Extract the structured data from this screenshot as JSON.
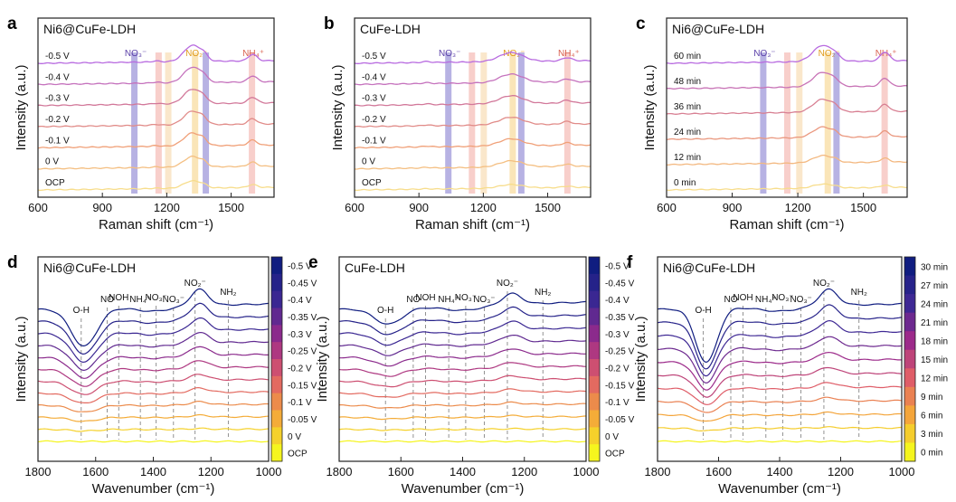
{
  "chart_data": [
    {
      "id": "a",
      "type": "line",
      "panel_letter": "a",
      "title": "Ni6@CuFe-LDH",
      "xlabel": "Raman shift (cm⁻¹)",
      "ylabel": "Intensity (a.u.)",
      "xlim": [
        600,
        1700
      ],
      "x_ticks": [
        "600",
        "900",
        "1200",
        "1500"
      ],
      "x_tick_values": [
        600,
        900,
        1200,
        1500
      ],
      "series_labels": [
        "OCP",
        "0 V",
        "-0.1 V",
        "-0.2 V",
        "-0.3 V",
        "-0.4 V",
        "-0.5 V"
      ],
      "bands": [
        {
          "label": "NO₃⁻",
          "x": 1047,
          "color": "#7b72cc",
          "label_color": "#5a3fa8"
        },
        {
          "label": "",
          "x": 1160,
          "color": "#f2a8a0"
        },
        {
          "label": "",
          "x": 1205,
          "color": "#f6d3a0"
        },
        {
          "label": "NO₂⁻",
          "x": 1330,
          "color": "#f6cf7e",
          "label_color": "#e09b1c"
        },
        {
          "label": "",
          "x": 1380,
          "color": "#7b72cc"
        },
        {
          "label": "NH₄⁺",
          "x": 1595,
          "color": "#f2a8a0",
          "label_color": "#d9604e"
        }
      ],
      "peaks": [
        {
          "x": 1320,
          "w": 40,
          "h": 1.0
        },
        {
          "x": 1600,
          "w": 20,
          "h": 0.4
        },
        {
          "x": 1372,
          "w": 16,
          "h": 0.25
        },
        {
          "x": 1150,
          "w": 18,
          "h": 0.06
        }
      ],
      "peak_scale": [
        0.45,
        0.65,
        0.8,
        0.85,
        0.9,
        0.95,
        1.0
      ]
    },
    {
      "id": "b",
      "type": "line",
      "panel_letter": "b",
      "title": "CuFe-LDH",
      "xlabel": "Raman shift (cm⁻¹)",
      "ylabel": "Intensity (a.u.)",
      "xlim": [
        600,
        1700
      ],
      "x_ticks": [
        "600",
        "900",
        "1200",
        "1500"
      ],
      "x_tick_values": [
        600,
        900,
        1200,
        1500
      ],
      "series_labels": [
        "OCP",
        "0 V",
        "-0.1 V",
        "-0.2 V",
        "-0.3 V",
        "-0.4 V",
        "-0.5 V"
      ],
      "bands": [
        {
          "label": "NO₃⁻",
          "x": 1035,
          "color": "#7b72cc",
          "label_color": "#5a3fa8"
        },
        {
          "label": "",
          "x": 1145,
          "color": "#f2a8a0"
        },
        {
          "label": "",
          "x": 1200,
          "color": "#f6d3a0"
        },
        {
          "label": "NO₂⁻",
          "x": 1335,
          "color": "#f6cf7e",
          "label_color": "#e09b1c"
        },
        {
          "label": "",
          "x": 1375,
          "color": "#7b72cc"
        },
        {
          "label": "NH₄⁺",
          "x": 1590,
          "color": "#f2a8a0",
          "label_color": "#d9604e"
        }
      ],
      "peaks": [
        {
          "x": 1330,
          "w": 55,
          "h": 0.55
        },
        {
          "x": 1590,
          "w": 22,
          "h": 0.2
        },
        {
          "x": 935,
          "w": 18,
          "h": 0.06
        }
      ],
      "peak_scale": [
        0.4,
        0.7,
        0.8,
        0.85,
        0.9,
        0.95,
        1.0
      ]
    },
    {
      "id": "c",
      "type": "line",
      "panel_letter": "c",
      "title": "Ni6@CuFe-LDH",
      "xlabel": "Raman shift (cm⁻¹)",
      "ylabel": "Intensity (a.u.)",
      "xlim": [
        600,
        1700
      ],
      "x_ticks": [
        "600",
        "900",
        "1200",
        "1500"
      ],
      "x_tick_values": [
        600,
        900,
        1200,
        1500
      ],
      "series_labels": [
        "0 min",
        "12 min",
        "24 min",
        "36 min",
        "48 min",
        "60 min"
      ],
      "bands": [
        {
          "label": "NO₃⁻",
          "x": 1040,
          "color": "#7b72cc",
          "label_color": "#5a3fa8"
        },
        {
          "label": "",
          "x": 1150,
          "color": "#f2a8a0"
        },
        {
          "label": "",
          "x": 1205,
          "color": "#f6d3a0"
        },
        {
          "label": "NO₂⁻",
          "x": 1335,
          "color": "#f6cf7e",
          "label_color": "#e09b1c"
        },
        {
          "label": "",
          "x": 1375,
          "color": "#7b72cc"
        },
        {
          "label": "NH₄⁺",
          "x": 1595,
          "color": "#f2a8a0",
          "label_color": "#d9604e"
        }
      ],
      "peaks": [
        {
          "x": 1315,
          "w": 45,
          "h": 1.0
        },
        {
          "x": 1598,
          "w": 20,
          "h": 0.55
        },
        {
          "x": 1372,
          "w": 16,
          "h": 0.2
        }
      ],
      "peak_scale": [
        0.25,
        0.45,
        0.65,
        0.8,
        0.9,
        1.0
      ]
    },
    {
      "id": "d",
      "type": "line",
      "panel_letter": "d",
      "title": "Ni6@CuFe-LDH",
      "xlabel": "Wavenumber (cm⁻¹)",
      "ylabel": "Intensity (a.u.)",
      "xlim": [
        1800,
        1000
      ],
      "x_ticks": [
        "1800",
        "1600",
        "1400",
        "1200",
        "1000"
      ],
      "x_tick_values": [
        1800,
        1600,
        1400,
        1200,
        1000
      ],
      "colorbar_labels": [
        "-0.5 V",
        "-0.45 V",
        "-0.4 V",
        "-0.35 V",
        "-0.3 V",
        "-0.25 V",
        "-0.2 V",
        "-0.15 V",
        "-0.1 V",
        "-0.05 V",
        "0 V",
        "OCP"
      ],
      "annotations": [
        {
          "label": "O-H",
          "x": 1650
        },
        {
          "label": "NO",
          "x": 1560
        },
        {
          "label": "NOH",
          "x": 1520
        },
        {
          "label": "NH₄⁺",
          "x": 1445
        },
        {
          "label": "NO₃⁻",
          "x": 1390
        },
        {
          "label": "NO₃⁻",
          "x": 1330
        },
        {
          "label": "NO₂⁻",
          "x": 1255
        },
        {
          "label": "NH₂",
          "x": 1140
        }
      ]
    },
    {
      "id": "e",
      "type": "line",
      "panel_letter": "e",
      "title": "CuFe-LDH",
      "xlabel": "Wavenumber (cm⁻¹)",
      "ylabel": "Intensity (a.u.)",
      "xlim": [
        1800,
        1000
      ],
      "x_ticks": [
        "1800",
        "1600",
        "1400",
        "1200",
        "1000"
      ],
      "x_tick_values": [
        1800,
        1600,
        1400,
        1200,
        1000
      ],
      "colorbar_labels": [
        "-0.5 V",
        "-0.45 V",
        "-0.4 V",
        "-0.35 V",
        "-0.3 V",
        "-0.25 V",
        "-0.2 V",
        "-0.15 V",
        "-0.1 V",
        "-0.05 V",
        "0 V",
        "OCP"
      ],
      "annotations": [
        {
          "label": "O-H",
          "x": 1650
        },
        {
          "label": "NO",
          "x": 1560
        },
        {
          "label": "NOH",
          "x": 1520
        },
        {
          "label": "NH₄⁺",
          "x": 1445
        },
        {
          "label": "NO₃⁻",
          "x": 1390
        },
        {
          "label": "NO₃⁻",
          "x": 1330
        },
        {
          "label": "NO₂⁻",
          "x": 1255
        },
        {
          "label": "NH₂",
          "x": 1140
        }
      ]
    },
    {
      "id": "f",
      "type": "line",
      "panel_letter": "f",
      "title": "Ni6@CuFe-LDH",
      "xlabel": "Wavenumber (cm⁻¹)",
      "ylabel": "Intensity (a.u.)",
      "xlim": [
        1800,
        1000
      ],
      "x_ticks": [
        "1800",
        "1600",
        "1400",
        "1200",
        "1000"
      ],
      "x_tick_values": [
        1800,
        1600,
        1400,
        1200,
        1000
      ],
      "colorbar_labels": [
        "30 min",
        "27 min",
        "24 min",
        "21 min",
        "18 min",
        "15 min",
        "12 min",
        "9 min",
        "6 min",
        "3 min",
        "0 min"
      ],
      "annotations": [
        {
          "label": "O-H",
          "x": 1650
        },
        {
          "label": "NO",
          "x": 1560
        },
        {
          "label": "NOH",
          "x": 1520
        },
        {
          "label": "NH₄⁺",
          "x": 1445
        },
        {
          "label": "NO₃⁻",
          "x": 1390
        },
        {
          "label": "NO₃⁻",
          "x": 1330
        },
        {
          "label": "NO₂⁻",
          "x": 1255
        },
        {
          "label": "NH₂",
          "x": 1140
        }
      ]
    }
  ]
}
